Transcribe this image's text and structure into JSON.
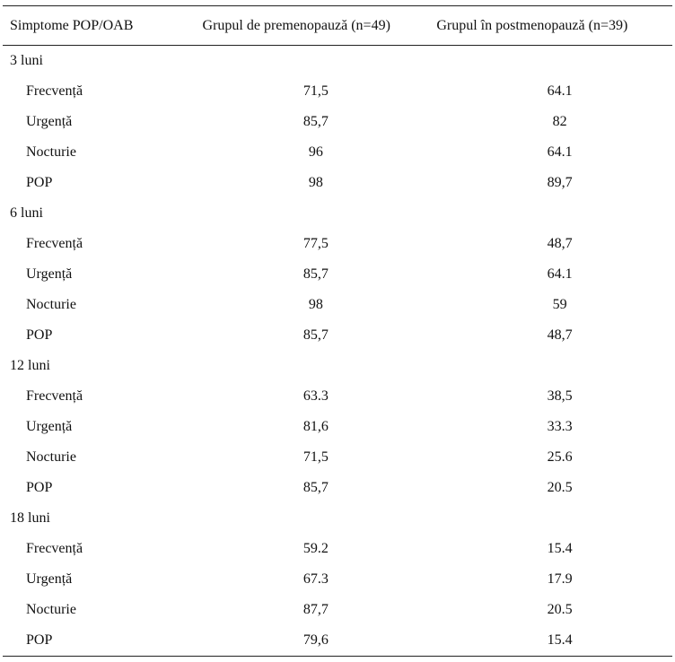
{
  "header": {
    "col1": "Simptome POP/OAB",
    "col2": "Grupul de premenopauză (n=49)",
    "col3": "Grupul în postmenopauză (n=39)"
  },
  "groups": [
    {
      "label": "3 luni",
      "rows": [
        {
          "symptom": "Frecvență",
          "pre": "71,5",
          "post": "64.1"
        },
        {
          "symptom": "Urgență",
          "pre": "85,7",
          "post": "82"
        },
        {
          "symptom": "Nocturie",
          "pre": "96",
          "post": "64.1"
        },
        {
          "symptom": "POP",
          "pre": "98",
          "post": "89,7"
        }
      ]
    },
    {
      "label": "6 luni",
      "rows": [
        {
          "symptom": "Frecvență",
          "pre": "77,5",
          "post": "48,7"
        },
        {
          "symptom": "Urgență",
          "pre": "85,7",
          "post": "64.1"
        },
        {
          "symptom": "Nocturie",
          "pre": "98",
          "post": "59"
        },
        {
          "symptom": "POP",
          "pre": "85,7",
          "post": "48,7"
        }
      ]
    },
    {
      "label": "12 luni",
      "rows": [
        {
          "symptom": "Frecvență",
          "pre": "63.3",
          "post": "38,5"
        },
        {
          "symptom": "Urgență",
          "pre": "81,6",
          "post": "33.3"
        },
        {
          "symptom": "Nocturie",
          "pre": "71,5",
          "post": "25.6"
        },
        {
          "symptom": "POP",
          "pre": "85,7",
          "post": "20.5"
        }
      ]
    },
    {
      "label": "18 luni",
      "rows": [
        {
          "symptom": "Frecvență",
          "pre": "59.2",
          "post": "15.4"
        },
        {
          "symptom": "Urgență",
          "pre": "67.3",
          "post": "17.9"
        },
        {
          "symptom": "Nocturie",
          "pre": "87,7",
          "post": "20.5"
        },
        {
          "symptom": "POP",
          "pre": "79,6",
          "post": "15.4"
        }
      ]
    }
  ]
}
